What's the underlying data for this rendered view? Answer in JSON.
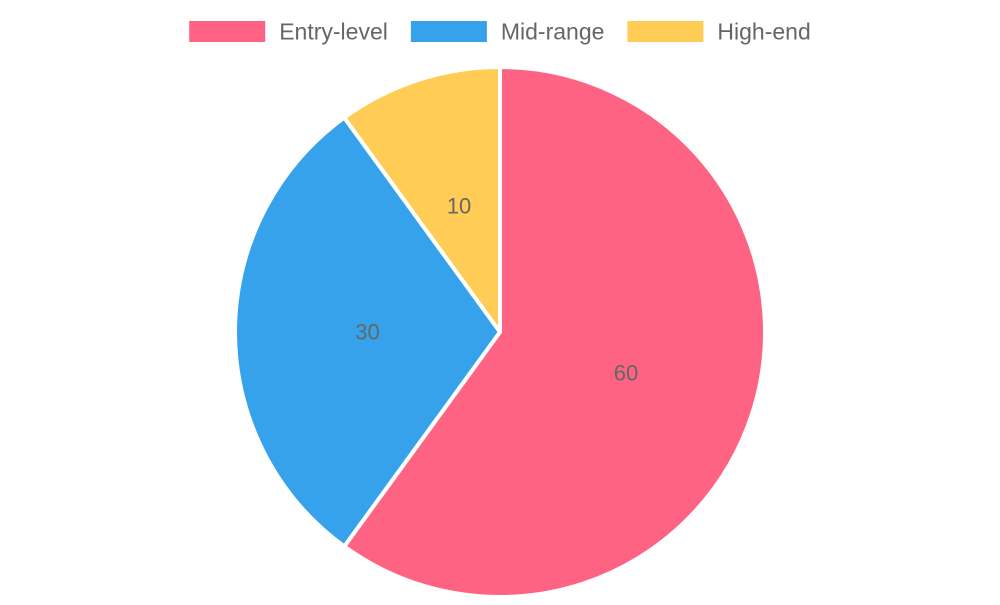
{
  "chart_data": {
    "type": "pie",
    "categories": [
      "Entry-level",
      "Mid-range",
      "High-end"
    ],
    "values": [
      60,
      30,
      10
    ],
    "colors": [
      "#ff6384",
      "#36a2eb",
      "#ffcd56"
    ],
    "data_labels": [
      "60",
      "30",
      "10"
    ],
    "legend_position": "top",
    "title": ""
  }
}
